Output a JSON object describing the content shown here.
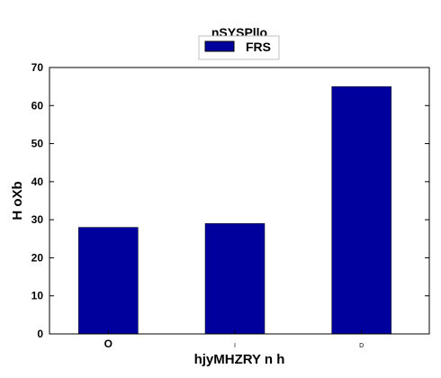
{
  "chart_data": {
    "type": "bar",
    "title": "nSYSPllo",
    "xlabel": "hjyMHZRY n h",
    "ylabel": "H  oXb",
    "categories": [
      "O",
      "I",
      "D"
    ],
    "series": [
      {
        "name": "FRS",
        "values": [
          28,
          29,
          65
        ],
        "color": "#00009c"
      }
    ],
    "ylim": [
      0,
      70
    ],
    "yticks": [
      0,
      10,
      20,
      30,
      40,
      50,
      60,
      70
    ],
    "grid": false,
    "legend_position": "top-center"
  }
}
